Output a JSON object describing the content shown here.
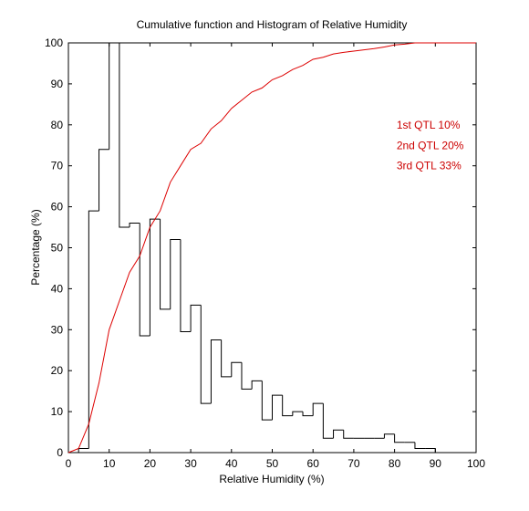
{
  "chart_data": {
    "type": "histogram-with-cumulative-line",
    "title": "Cumulative function and Histogram of Relative Humidity",
    "xlabel": "Relative Humidity (%)",
    "ylabel": "Percentage (%)",
    "xlim": [
      0,
      100
    ],
    "ylim": [
      0,
      100
    ],
    "xticks": [
      0,
      10,
      20,
      30,
      40,
      50,
      60,
      70,
      80,
      90,
      100
    ],
    "yticks": [
      0,
      10,
      20,
      30,
      40,
      50,
      60,
      70,
      80,
      90,
      100
    ],
    "grid": false,
    "colors": {
      "histogram": "#000000",
      "cumulative": "#dd0000",
      "annotation": "#cc0000"
    },
    "histogram": {
      "name": "Histogram",
      "bin_edges": [
        0,
        2.5,
        5,
        7.5,
        10,
        12.5,
        15,
        17.5,
        20,
        22.5,
        25,
        27.5,
        30,
        32.5,
        35,
        37.5,
        40,
        42.5,
        45,
        47.5,
        50,
        52.5,
        55,
        57.5,
        60,
        62.5,
        65,
        67.5,
        70,
        72.5,
        75,
        77.5,
        80,
        82.5,
        85,
        87.5,
        90
      ],
      "values": [
        0,
        1,
        59,
        74,
        100,
        55,
        56,
        28.5,
        57,
        35,
        52,
        29.5,
        36,
        12,
        27.5,
        18.5,
        22,
        15.5,
        17.5,
        8,
        14,
        9,
        10,
        9,
        12,
        3.5,
        5.5,
        3.5,
        3.5,
        3.5,
        3.5,
        4.5,
        2.5,
        2.5,
        1,
        1
      ]
    },
    "cumulative": {
      "name": "Cumulative function",
      "x": [
        0,
        2.5,
        5,
        7.5,
        10,
        12.5,
        15,
        17.5,
        20,
        22.5,
        25,
        27.5,
        30,
        32.5,
        35,
        37.5,
        40,
        42.5,
        45,
        47.5,
        50,
        52.5,
        55,
        57.5,
        60,
        62.5,
        65,
        67.5,
        70,
        72.5,
        75,
        77.5,
        80,
        82.5,
        85,
        87.5,
        90,
        100
      ],
      "y": [
        0,
        1,
        7,
        17,
        30,
        37,
        44,
        48,
        55,
        59,
        66,
        70,
        74,
        75.5,
        79,
        81,
        84,
        86,
        88,
        89,
        91,
        92,
        93.5,
        94.5,
        96,
        96.5,
        97.3,
        97.7,
        98,
        98.3,
        98.6,
        99,
        99.5,
        99.7,
        100,
        100,
        100,
        100
      ]
    },
    "annotations": [
      {
        "text": "1st QTL  10%",
        "x": 80.5,
        "y": 80
      },
      {
        "text": "2nd QTL  20%",
        "x": 80.5,
        "y": 75
      },
      {
        "text": "3rd QTL  33%",
        "x": 80.5,
        "y": 70
      }
    ]
  }
}
